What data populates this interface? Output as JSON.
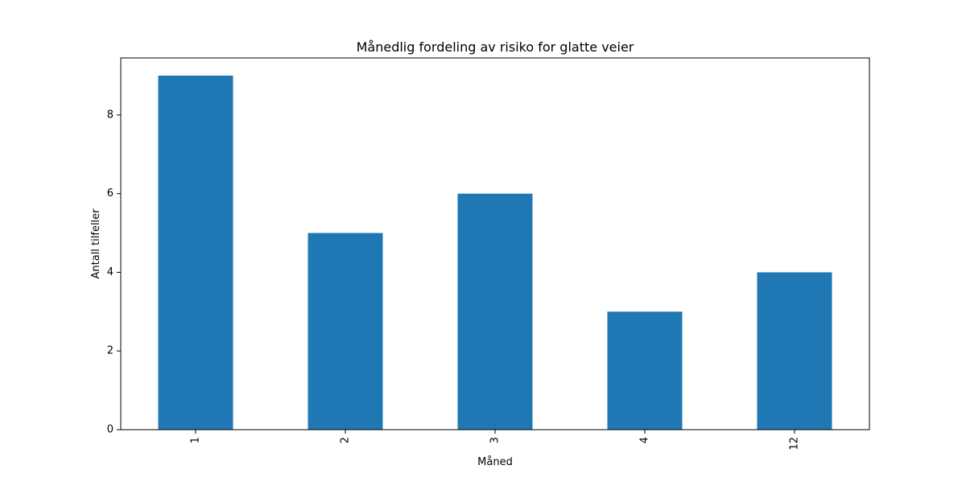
{
  "chart_data": {
    "type": "bar",
    "title": "Månedlig fordeling av risiko for glatte veier",
    "xlabel": "Måned",
    "ylabel": "Antall tilfeller",
    "categories": [
      "1",
      "2",
      "3",
      "4",
      "12"
    ],
    "values": [
      9,
      5,
      6,
      3,
      4
    ],
    "ylim": [
      0,
      9.45
    ],
    "yticks": [
      0,
      2,
      4,
      6,
      8
    ],
    "grid": false,
    "legend": "none",
    "bar_color": "#1f77b4",
    "x_tick_rotation": "vertical"
  }
}
